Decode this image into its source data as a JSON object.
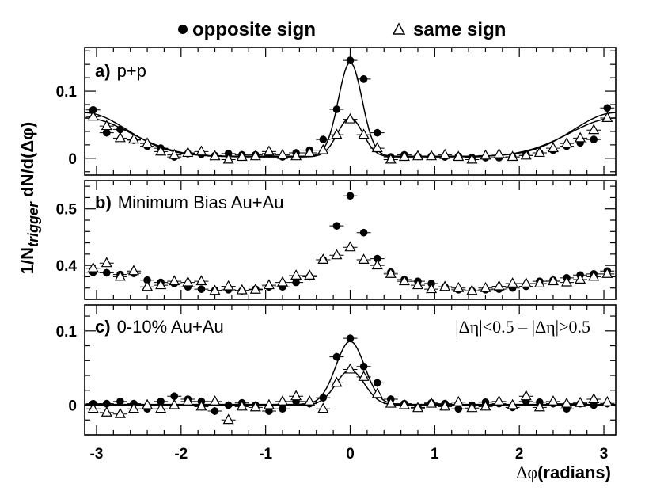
{
  "chart_data": {
    "type": "scatter",
    "legend": {
      "placement": "top",
      "entries": [
        {
          "marker": "filled-circle",
          "label": "opposite sign"
        },
        {
          "marker": "open-triangle",
          "label": "same sign"
        }
      ]
    },
    "x_axis": {
      "label_phi": "Δφ",
      "label_units": "(radians)",
      "range": [
        -3.14,
        3.14
      ],
      "ticks": [
        -3,
        -2,
        -1,
        0,
        1,
        2,
        3
      ],
      "tick_labels": [
        "-3",
        "-2",
        "-1",
        "0",
        "1",
        "2",
        "3"
      ]
    },
    "y_axis": {
      "label_prefix": "1/N",
      "label_sub": "trigger",
      "label_suffix": " dN/d(Δφ)"
    },
    "panels": [
      {
        "tag": "a)",
        "name": "p+p",
        "bold_name": false,
        "ylim": [
          -0.025,
          0.165
        ],
        "yticks": [
          0,
          0.1
        ],
        "ytick_labels": [
          "0",
          "0.1"
        ],
        "series": [
          {
            "name": "opposite sign",
            "marker": "filled-circle",
            "x": [
              -3.04,
              -2.88,
              -2.72,
              -2.56,
              -2.4,
              -2.24,
              -2.08,
              -1.92,
              -1.76,
              -1.6,
              -1.44,
              -1.28,
              -1.12,
              -0.96,
              -0.8,
              -0.64,
              -0.48,
              -0.32,
              -0.16,
              0,
              0.16,
              0.32,
              0.48,
              0.64,
              0.8,
              0.96,
              1.12,
              1.28,
              1.44,
              1.6,
              1.76,
              1.92,
              2.08,
              2.24,
              2.4,
              2.56,
              2.72,
              2.88,
              3.04
            ],
            "y": [
              0.072,
              0.038,
              0.043,
              0.027,
              0.018,
              0.015,
              0.002,
              0.007,
              0.006,
              0.004,
              0.007,
              0.005,
              0.005,
              0.007,
              0.002,
              0.008,
              0.012,
              0.028,
              0.073,
              0.146,
              0.118,
              0.038,
              0.002,
              0.005,
              0.003,
              0.003,
              0.002,
              0.003,
              0.001,
              0.001,
              0.001,
              0.002,
              0.006,
              0.008,
              0.012,
              0.018,
              0.023,
              0.028,
              0.075
            ]
          },
          {
            "name": "same sign",
            "marker": "open-triangle",
            "x": [
              -3.04,
              -2.88,
              -2.72,
              -2.56,
              -2.4,
              -2.24,
              -2.08,
              -1.92,
              -1.76,
              -1.6,
              -1.44,
              -1.28,
              -1.12,
              -0.96,
              -0.8,
              -0.64,
              -0.48,
              -0.32,
              -0.16,
              0,
              0.16,
              0.32,
              0.48,
              0.64,
              0.8,
              0.96,
              1.12,
              1.28,
              1.44,
              1.6,
              1.76,
              1.92,
              2.08,
              2.24,
              2.4,
              2.56,
              2.72,
              2.88,
              3.04
            ],
            "y": [
              0.062,
              0.048,
              0.03,
              0.028,
              0.022,
              0.01,
              0.005,
              0.008,
              0.01,
              0.003,
              -0.002,
              0.002,
              0.003,
              0.01,
              0.005,
              0.003,
              0.008,
              0.012,
              0.035,
              0.058,
              0.035,
              0.015,
              -0.002,
              0.002,
              0.003,
              0.003,
              0.005,
              0.002,
              -0.002,
              0.004,
              0.006,
              0.002,
              0.004,
              0.008,
              0.015,
              0.022,
              0.03,
              0.042,
              0.06
            ]
          }
        ]
      },
      {
        "tag": "b)",
        "name": "Minimum Bias Au+Au",
        "bold_name": false,
        "ylim": [
          0.34,
          0.55
        ],
        "yticks": [
          0.4,
          0.5
        ],
        "ytick_labels": [
          "0.4",
          "0.5"
        ],
        "series": [
          {
            "name": "opposite sign",
            "marker": "filled-circle",
            "x": [
              -3.04,
              -2.88,
              -2.72,
              -2.56,
              -2.4,
              -2.24,
              -2.08,
              -1.92,
              -1.76,
              -1.6,
              -1.44,
              -1.28,
              -1.12,
              -0.96,
              -0.8,
              -0.64,
              -0.48,
              -0.32,
              -0.16,
              0,
              0.16,
              0.32,
              0.48,
              0.64,
              0.8,
              0.96,
              1.12,
              1.28,
              1.44,
              1.6,
              1.76,
              1.92,
              2.08,
              2.24,
              2.4,
              2.56,
              2.72,
              2.88,
              3.04
            ],
            "y": [
              0.388,
              0.387,
              0.384,
              0.386,
              0.374,
              0.37,
              0.368,
              0.362,
              0.358,
              0.356,
              0.357,
              0.355,
              0.358,
              0.362,
              0.362,
              0.37,
              0.38,
              0.41,
              0.47,
              0.523,
              0.458,
              0.412,
              0.388,
              0.375,
              0.372,
              0.368,
              0.362,
              0.357,
              0.355,
              0.357,
              0.358,
              0.36,
              0.363,
              0.372,
              0.374,
              0.378,
              0.383,
              0.385,
              0.39
            ]
          },
          {
            "name": "same sign",
            "marker": "open-triangle",
            "x": [
              -3.04,
              -2.88,
              -2.72,
              -2.56,
              -2.4,
              -2.24,
              -2.08,
              -1.92,
              -1.76,
              -1.6,
              -1.44,
              -1.28,
              -1.12,
              -0.96,
              -0.8,
              -0.64,
              -0.48,
              -0.32,
              -0.16,
              0,
              0.16,
              0.32,
              0.48,
              0.64,
              0.8,
              0.96,
              1.12,
              1.28,
              1.44,
              1.6,
              1.76,
              1.92,
              2.08,
              2.24,
              2.4,
              2.56,
              2.72,
              2.88,
              3.04
            ],
            "y": [
              0.395,
              0.404,
              0.38,
              0.39,
              0.362,
              0.365,
              0.372,
              0.37,
              0.372,
              0.355,
              0.363,
              0.356,
              0.357,
              0.365,
              0.37,
              0.382,
              0.382,
              0.41,
              0.418,
              0.432,
              0.41,
              0.4,
              0.385,
              0.372,
              0.365,
              0.358,
              0.362,
              0.36,
              0.355,
              0.36,
              0.363,
              0.368,
              0.368,
              0.368,
              0.372,
              0.37,
              0.375,
              0.38,
              0.385
            ]
          }
        ]
      },
      {
        "tag": "c)",
        "name": "0-10% Au+Au",
        "bold_name": false,
        "annotation": "|Δη|<0.5 – |Δη|>0.5",
        "ylim": [
          -0.04,
          0.135
        ],
        "yticks": [
          0,
          0.1
        ],
        "ytick_labels": [
          "0",
          "0.1"
        ],
        "series": [
          {
            "name": "opposite sign",
            "marker": "filled-circle",
            "x": [
              -3.04,
              -2.88,
              -2.72,
              -2.56,
              -2.4,
              -2.24,
              -2.08,
              -1.92,
              -1.76,
              -1.6,
              -1.44,
              -1.28,
              -1.12,
              -0.96,
              -0.8,
              -0.64,
              -0.48,
              -0.32,
              -0.16,
              0,
              0.16,
              0.32,
              0.48,
              0.64,
              0.8,
              0.96,
              1.12,
              1.28,
              1.44,
              1.6,
              1.76,
              1.92,
              2.08,
              2.24,
              2.4,
              2.56,
              2.72,
              2.88,
              3.04
            ],
            "y": [
              0.002,
              0.002,
              0.005,
              0.002,
              -0.005,
              0.005,
              0.012,
              0.008,
              0.005,
              -0.008,
              0,
              0.003,
              0,
              -0.008,
              -0.005,
              0.005,
              0.002,
              0.01,
              0.065,
              0.09,
              0.052,
              0.03,
              0.008,
              0.002,
              -0.003,
              0.003,
              0.002,
              -0.005,
              0,
              0.004,
              0.002,
              -0.003,
              0.005,
              0.004,
              0.002,
              -0.005,
              0.002,
              0,
              0.002
            ]
          },
          {
            "name": "same sign",
            "marker": "open-triangle",
            "x": [
              -3.04,
              -2.88,
              -2.72,
              -2.56,
              -2.4,
              -2.24,
              -2.08,
              -1.92,
              -1.76,
              -1.6,
              -1.44,
              -1.28,
              -1.12,
              -0.96,
              -0.8,
              -0.64,
              -0.48,
              -0.32,
              -0.16,
              0,
              0.16,
              0.32,
              0.48,
              0.64,
              0.8,
              0.96,
              1.12,
              1.28,
              1.44,
              1.6,
              1.76,
              1.92,
              2.08,
              2.24,
              2.4,
              2.56,
              2.72,
              2.88,
              3.04
            ],
            "y": [
              -0.005,
              -0.01,
              -0.012,
              -0.005,
              0,
              -0.005,
              0,
              0.005,
              -0.002,
              0.005,
              -0.02,
              -0.002,
              -0.003,
              0,
              0.005,
              0.012,
              0.005,
              -0.005,
              0.03,
              0.048,
              0.038,
              0.015,
              0.002,
              0,
              -0.004,
              0.002,
              -0.002,
              0.004,
              -0.004,
              -0.002,
              0.005,
              0,
              0.012,
              -0.003,
              0.005,
              0.002,
              0.003,
              0.008,
              0.004
            ]
          }
        ]
      }
    ]
  }
}
